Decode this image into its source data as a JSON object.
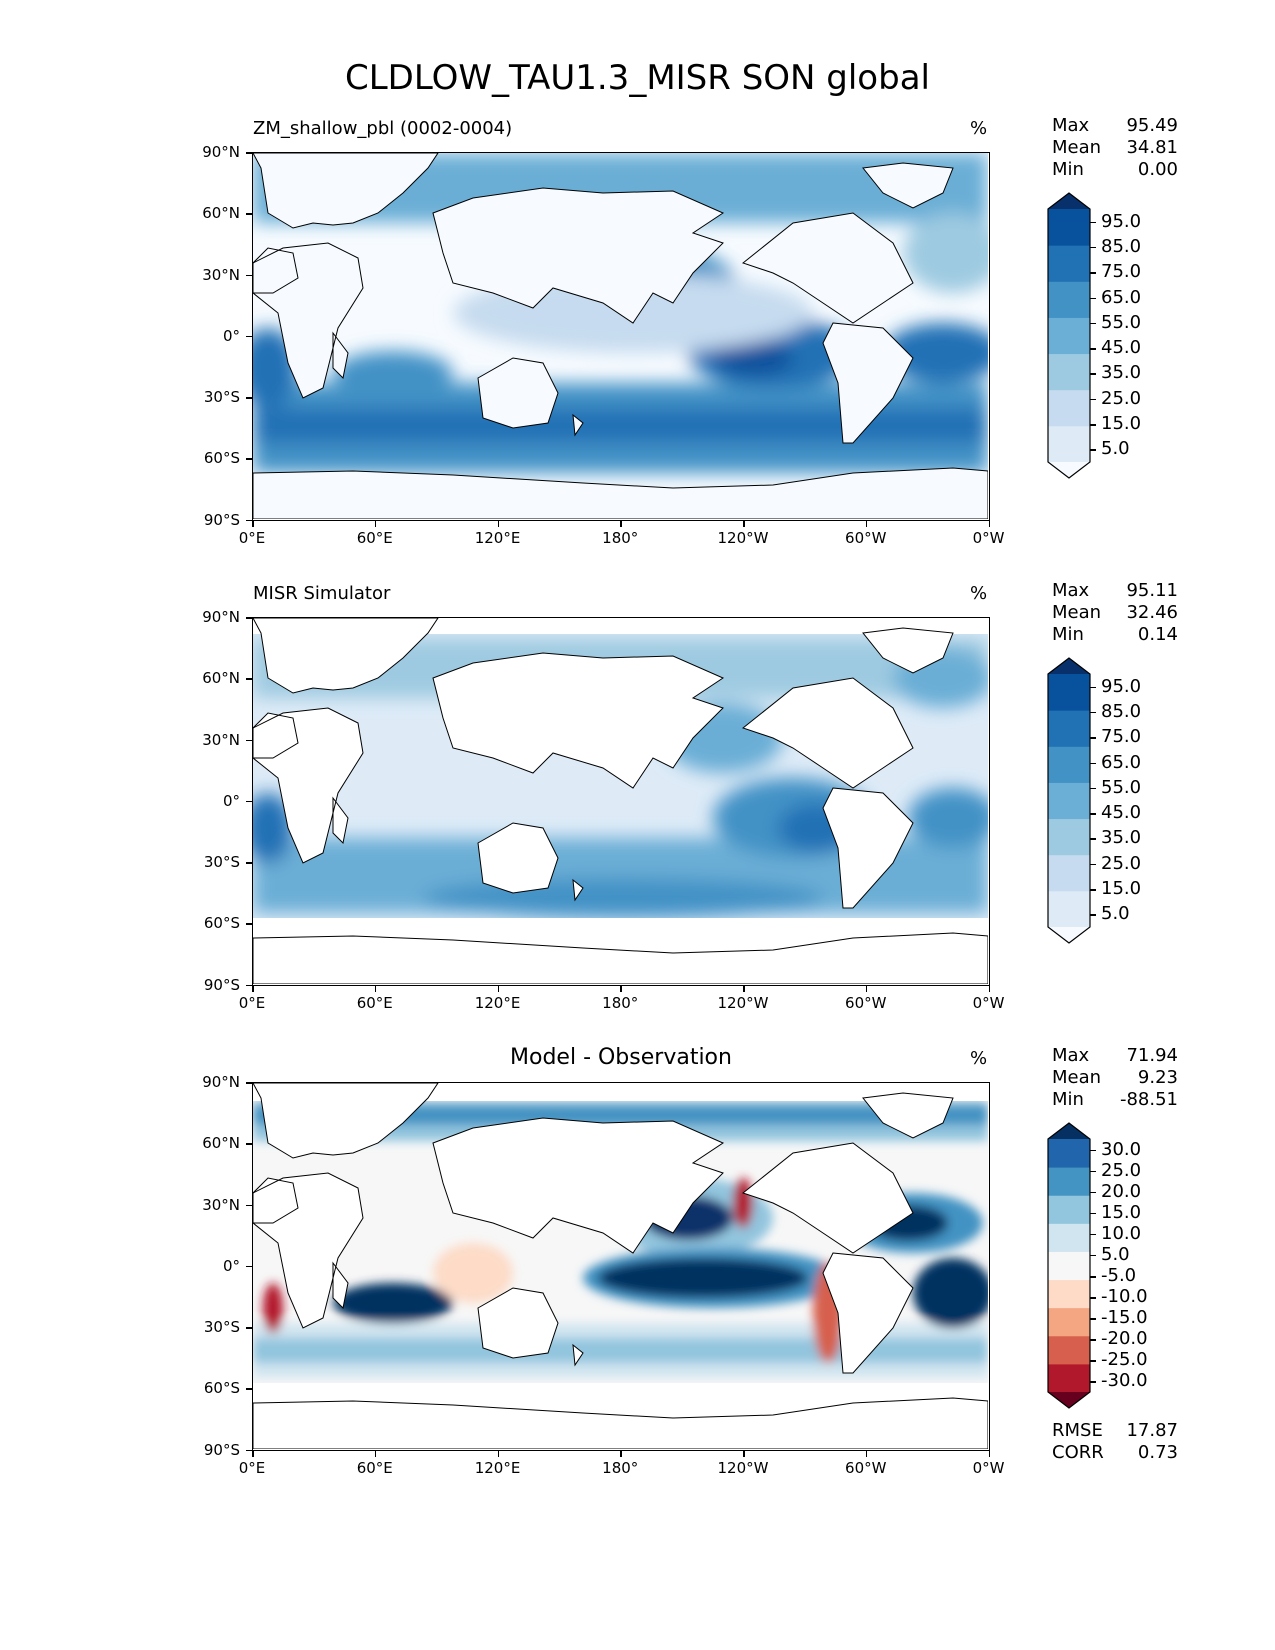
{
  "title": "CLDLOW_TAU1.3_MISR SON global",
  "unit": "%",
  "lat_ticks": [
    "90°N",
    "60°N",
    "30°N",
    "0°",
    "30°S",
    "60°S",
    "90°S"
  ],
  "lon_ticks": [
    "0°E",
    "60°E",
    "120°E",
    "180°",
    "120°W",
    "60°W",
    "0°W"
  ],
  "panels": [
    {
      "title": "ZM_shallow_pbl (0002-0004)",
      "unit": "%",
      "stats": {
        "max_label": "Max",
        "max": "95.49",
        "mean_label": "Mean",
        "mean": "34.81",
        "min_label": "Min",
        "min": "0.00"
      },
      "colorbar": {
        "labels": [
          "95.0",
          "85.0",
          "75.0",
          "65.0",
          "55.0",
          "45.0",
          "35.0",
          "25.0",
          "15.0",
          "5.0"
        ],
        "colors": [
          "#f7fbff",
          "#deebf7",
          "#c6dbef",
          "#9ecae1",
          "#6baed6",
          "#4292c6",
          "#2171b5",
          "#08519c",
          "#08306b"
        ]
      }
    },
    {
      "title": "MISR Simulator",
      "unit": "%",
      "stats": {
        "max_label": "Max",
        "max": "95.11",
        "mean_label": "Mean",
        "mean": "32.46",
        "min_label": "Min",
        "min": "0.14"
      },
      "colorbar": {
        "labels": [
          "95.0",
          "85.0",
          "75.0",
          "65.0",
          "55.0",
          "45.0",
          "35.0",
          "25.0",
          "15.0",
          "5.0"
        ],
        "colors": [
          "#f7fbff",
          "#deebf7",
          "#c6dbef",
          "#9ecae1",
          "#6baed6",
          "#4292c6",
          "#2171b5",
          "#08519c",
          "#08306b"
        ]
      }
    },
    {
      "title": "Model - Observation",
      "unit": "%",
      "stats": {
        "max_label": "Max",
        "max": "71.94",
        "mean_label": "Mean",
        "mean": "9.23",
        "min_label": "Min",
        "min": "-88.51"
      },
      "colorbar": {
        "labels": [
          "30.0",
          "25.0",
          "20.0",
          "15.0",
          "10.0",
          "5.0",
          "-5.0",
          "-10.0",
          "-15.0",
          "-20.0",
          "-25.0",
          "-30.0"
        ],
        "colors": [
          "#67001f",
          "#b2182b",
          "#d6604d",
          "#f4a582",
          "#fddbc7",
          "#f7f7f7",
          "#d1e5f0",
          "#92c5de",
          "#4393c3",
          "#2166ac",
          "#053061"
        ]
      },
      "metrics": {
        "rmse_label": "RMSE",
        "rmse": "17.87",
        "corr_label": "CORR",
        "corr": "0.73"
      }
    }
  ],
  "chart_data": [
    {
      "type": "heatmap",
      "title": "ZM_shallow_pbl (0002-0004)",
      "variable": "CLDLOW_TAU1.3_MISR",
      "season": "SON",
      "units": "%",
      "xlim": [
        0,
        360
      ],
      "ylim": [
        -90,
        90
      ],
      "levels": [
        5,
        15,
        25,
        35,
        45,
        55,
        65,
        75,
        85,
        95
      ],
      "max": 95.49,
      "mean": 34.81,
      "min": 0.0
    },
    {
      "type": "heatmap",
      "title": "MISR Simulator",
      "units": "%",
      "xlim": [
        0,
        360
      ],
      "ylim": [
        -90,
        90
      ],
      "levels": [
        5,
        15,
        25,
        35,
        45,
        55,
        65,
        75,
        85,
        95
      ],
      "max": 95.11,
      "mean": 32.46,
      "min": 0.14
    },
    {
      "type": "heatmap",
      "title": "Model - Observation",
      "units": "%",
      "xlim": [
        0,
        360
      ],
      "ylim": [
        -90,
        90
      ],
      "levels": [
        -30,
        -25,
        -20,
        -15,
        -10,
        -5,
        5,
        10,
        15,
        20,
        25,
        30
      ],
      "max": 71.94,
      "mean": 9.23,
      "min": -88.51,
      "rmse": 17.87,
      "corr": 0.73
    }
  ]
}
